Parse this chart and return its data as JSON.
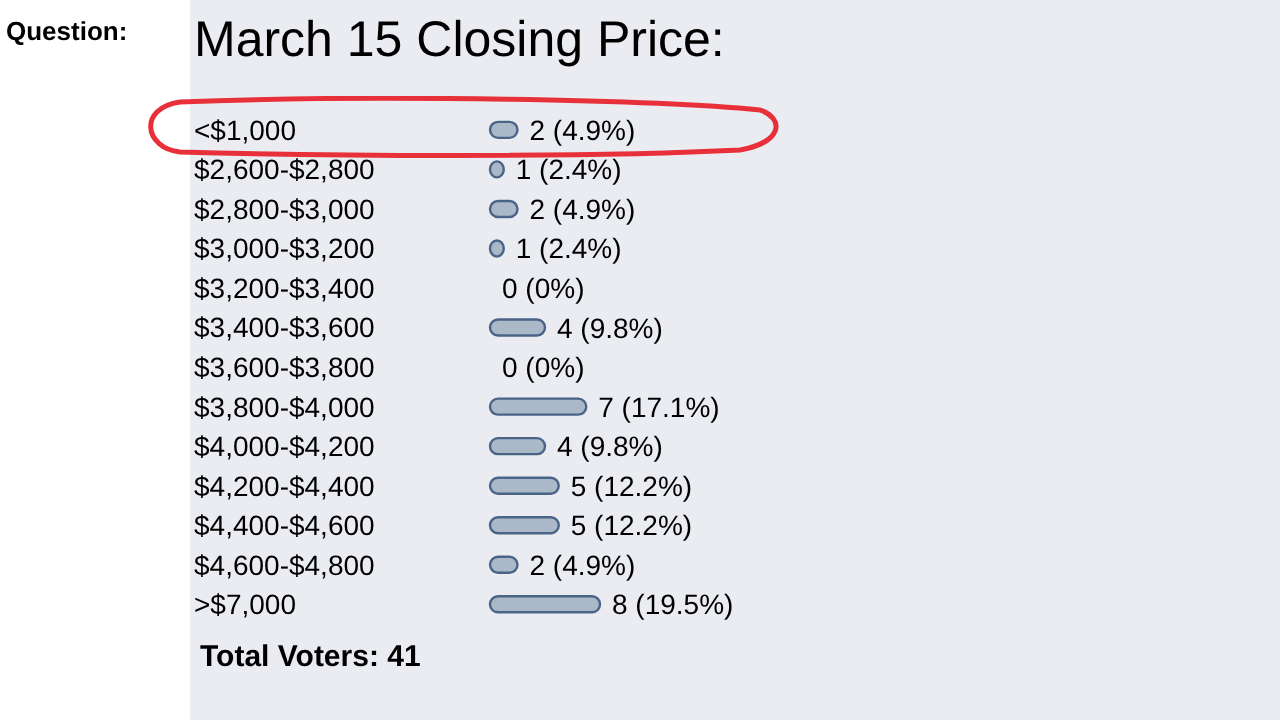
{
  "chart_data": {
    "type": "bar",
    "orientation": "horizontal",
    "title": "March 15 Closing Price:",
    "annotations": [
      "Question:",
      "Total Voters: 41"
    ],
    "categories": [
      "<$1,000",
      "$2,600-$2,800",
      "$2,800-$3,000",
      "$3,000-$3,200",
      "$3,200-$3,400",
      "$3,400-$3,600",
      "$3,600-$3,800",
      "$3,800-$4,000",
      "$4,000-$4,200",
      "$4,200-$4,400",
      "$4,400-$4,600",
      "$4,600-$4,800",
      ">$7,000"
    ],
    "values": [
      2,
      1,
      2,
      1,
      0,
      4,
      0,
      7,
      4,
      5,
      5,
      2,
      8
    ],
    "value_labels": [
      "2 (4.9%)",
      "1 (2.4%)",
      "2 (4.9%)",
      "1 (2.4%)",
      "0 (0%)",
      "4 (9.8%)",
      "0 (0%)",
      "7 (17.1%)",
      "4 (9.8%)",
      "5 (12.2%)",
      "5 (12.2%)",
      "2 (4.9%)",
      "8 (19.5%)"
    ],
    "color": "#aab8c8"
  }
}
